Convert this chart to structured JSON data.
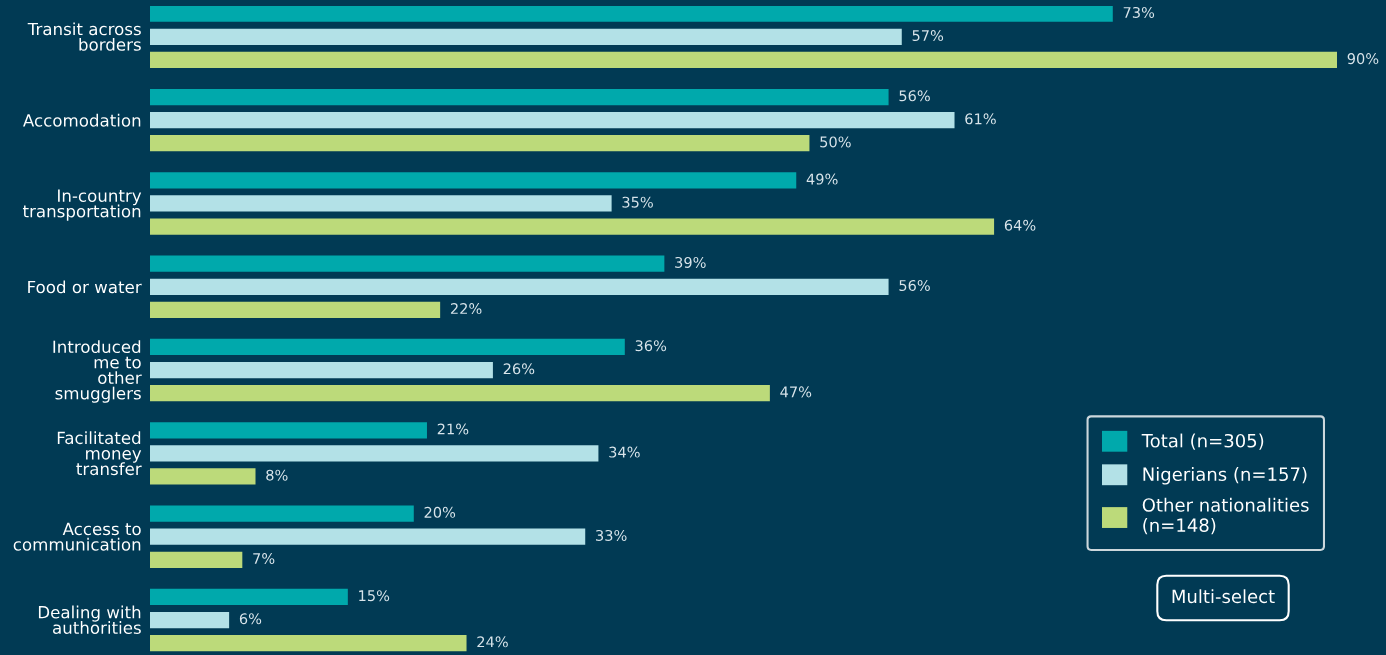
{
  "chart_data": {
    "type": "bar",
    "orientation": "horizontal",
    "categories": [
      "Transit across\nborders",
      "Accomodation",
      "In-country\ntransportation",
      "Food or water",
      "Introduced\nme to\nother\nsmugglers",
      "Facilitated\nmoney\ntransfer",
      "Access to\ncommunication",
      "Dealing with\nauthorities"
    ],
    "series": [
      {
        "name": "Total (n=305)",
        "color": "#00a9ac",
        "values": [
          73,
          56,
          49,
          39,
          36,
          21,
          20,
          15
        ],
        "value_labels": [
          "73%",
          "56%",
          "49%",
          "39%",
          "36%",
          "21%",
          "20%",
          "15%"
        ]
      },
      {
        "name": "Nigerians (n=157)",
        "color": "#b3e1e7",
        "values": [
          57,
          61,
          35,
          56,
          26,
          34,
          33,
          6
        ],
        "value_labels": [
          "57%",
          "61%",
          "35%",
          "56%",
          "26%",
          "34%",
          "33%",
          "6%"
        ]
      },
      {
        "name": "Other nationalities\n(n=148)",
        "color": "#bcda7a",
        "values": [
          90,
          50,
          64,
          22,
          47,
          8,
          7,
          24
        ],
        "value_labels": [
          "90%",
          "50%",
          "64%",
          "22%",
          "47%",
          "8%",
          "7%",
          "24%"
        ]
      }
    ],
    "legend": "bottom right",
    "annotations": [
      "Multi-select"
    ]
  }
}
